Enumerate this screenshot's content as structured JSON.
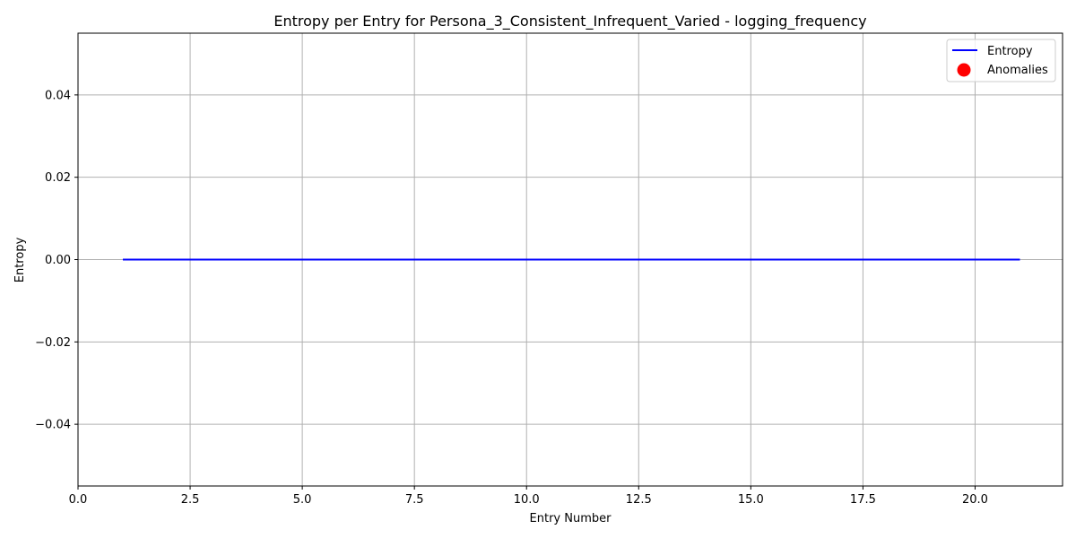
{
  "chart_data": {
    "type": "line",
    "title": "Entropy per Entry for Persona_3_Consistent_Infrequent_Varied - logging_frequency",
    "xlabel": "Entry Number",
    "ylabel": "Entropy",
    "xlim": [
      0,
      21.95
    ],
    "ylim": [
      -0.055,
      0.055
    ],
    "grid": true,
    "legend_position": "top-right",
    "x_ticks": [
      0,
      2.5,
      5,
      7.5,
      10,
      12.5,
      15,
      17.5,
      20
    ],
    "x_tick_labels": [
      "0.0",
      "2.5",
      "5.0",
      "7.5",
      "10.0",
      "12.5",
      "15.0",
      "17.5",
      "20.0"
    ],
    "y_ticks": [
      -0.04,
      -0.02,
      0,
      0.02,
      0.04
    ],
    "y_tick_labels": [
      "−0.04",
      "−0.02",
      "0.00",
      "0.02",
      "0.04"
    ],
    "series": [
      {
        "name": "Entropy",
        "kind": "line",
        "color": "#0000ff",
        "x": [
          1,
          2,
          3,
          4,
          5,
          6,
          7,
          8,
          9,
          10,
          11,
          12,
          13,
          14,
          15,
          16,
          17,
          18,
          19,
          20,
          21
        ],
        "y": [
          0,
          0,
          0,
          0,
          0,
          0,
          0,
          0,
          0,
          0,
          0,
          0,
          0,
          0,
          0,
          0,
          0,
          0,
          0,
          0,
          0
        ]
      },
      {
        "name": "Anomalies",
        "kind": "scatter",
        "color": "#ff0000",
        "x": [],
        "y": []
      }
    ]
  }
}
